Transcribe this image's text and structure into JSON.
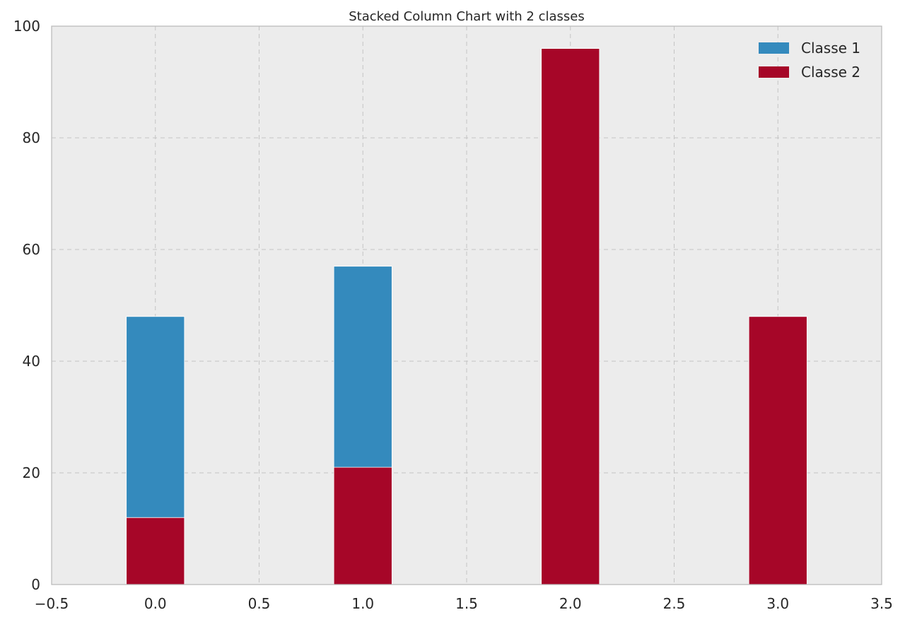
{
  "chart_data": {
    "type": "bar",
    "stacked": true,
    "title": "Stacked Column Chart with 2 classes",
    "xlabel": "",
    "ylabel": "",
    "x": [
      0,
      1,
      2,
      3
    ],
    "bar_width": 0.28,
    "series": [
      {
        "name": "Classe 2",
        "values": [
          12,
          21,
          96,
          48
        ],
        "color": "#A60628"
      },
      {
        "name": "Classe 1",
        "values": [
          36,
          36,
          0,
          0
        ],
        "color": "#348ABD"
      }
    ],
    "xlim": [
      -0.5,
      3.5
    ],
    "ylim": [
      0,
      100
    ],
    "xticks": [
      "−0.5",
      "0.0",
      "0.5",
      "1.0",
      "1.5",
      "2.0",
      "2.5",
      "3.0",
      "3.5"
    ],
    "yticks": [
      "0",
      "20",
      "40",
      "60",
      "80",
      "100"
    ],
    "grid": true,
    "legend": {
      "position": "top-right",
      "entries": [
        {
          "label": "Classe 1",
          "color": "#348ABD"
        },
        {
          "label": "Classe 2",
          "color": "#A60628"
        }
      ]
    },
    "plot_background": "#ECECEC",
    "spine_color": "#BCBCBC"
  }
}
